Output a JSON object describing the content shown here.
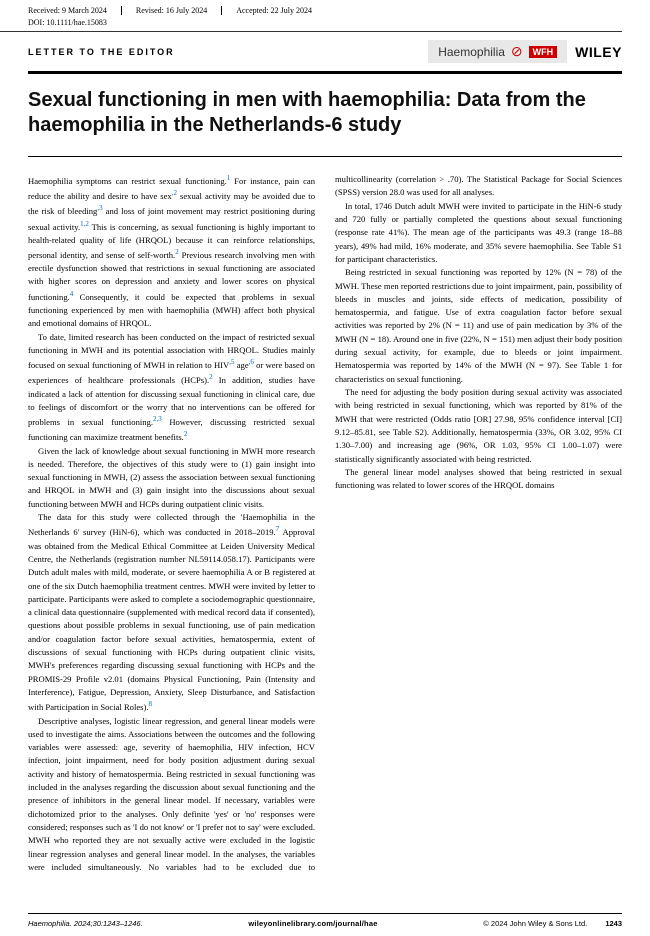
{
  "meta": {
    "received": "Received: 9 March 2024",
    "revised": "Revised: 16 July 2024",
    "accepted": "Accepted: 22 July 2024",
    "doi": "DOI: 10.1111/hae.15083"
  },
  "header": {
    "letter": "LETTER TO THE EDITOR",
    "haem": "Haemophilia",
    "wfh": "WFH",
    "wiley": "WILEY"
  },
  "title": "Sexual functioning in men with haemophilia: Data from the haemophilia in the Netherlands-6 study",
  "paragraphs": [
    "Haemophilia symptoms can restrict sexual functioning.¹ For instance, pain can reduce the ability and desire to have sex,² sexual activity may be avoided due to the risk of bleeding,³ and loss of joint movement may restrict positioning during sexual activity.¹,² This is concerning, as sexual functioning is highly important to health-related quality of life (HRQOL) because it can reinforce relationships, personal identity, and sense of self-worth.² Previous research involving men with erectile dysfunction showed that restrictions in sexual functioning are associated with higher scores on depression and anxiety and lower scores on physical functioning.⁴ Consequently, it could be expected that problems in sexual functioning experienced by men with haemophilia (MWH) affect both physical and emotional domains of HRQOL.",
    "To date, limited research has been conducted on the impact of restricted sexual functioning in MWH and its potential association with HRQOL. Studies mainly focused on sexual functioning of MWH in relation to HIV,⁵ age,⁶ or were based on experiences of healthcare professionals (HCPs).² In addition, studies have indicated a lack of attention for discussing sexual functioning in clinical care, due to feelings of discomfort or the worry that no interventions can be offered for problems in sexual functioning.²,³ However, discussing restricted sexual functioning can maximize treatment benefits.²",
    "Given the lack of knowledge about sexual functioning in MWH more research is needed. Therefore, the objectives of this study were to (1) gain insight into sexual functioning in MWH, (2) assess the association between sexual functioning and HRQOL in MWH and (3) gain insight into the discussions about sexual functioning between MWH and HCPs during outpatient clinic visits.",
    "The data for this study were collected through the 'Haemophilia in the Netherlands 6' survey (HiN-6), which was conducted in 2018–2019.⁷ Approval was obtained from the Medical Ethical Committee at Leiden University Medical Centre, the Netherlands (registration number NL59114.058.17). Participants were Dutch adult males with mild, moderate, or severe haemophilia A or B registered at one of the six Dutch haemophilia treatment centres. MWH were invited by letter to participate. Participants were asked to complete a sociodemographic questionnaire, a clinical data questionnaire (supplemented with medical record data if consented), questions about possible problems in sexual functioning, use of pain medication and/or coagulation factor before sexual activities, hematospermia, extent of discussions of sexual functioning with HCPs during outpatient clinic visits, MWH's preferences regarding discussing sexual functioning with HCPs and the PROMIS-29 Profile v2.01 (domains Physical Functioning, Pain (Intensity and Interference), Fatigue, Depression, Anxiety, Sleep Disturbance, and Satisfaction with Participation in Social Roles).⁸",
    "Descriptive analyses, logistic linear regression, and general linear models were used to investigate the aims. Associations between the outcomes and the following variables were assessed: age, severity of haemophilia, HIV infection, HCV infection, joint impairment, need for body position adjustment during sexual activity and history of hematospermia. Being restricted in sexual functioning was included in the analyses regarding the discussion about sexual functioning and the presence of inhibitors in the general linear model. If necessary, variables were dichotomized prior to the analyses. Only definite 'yes' or 'no' responses were considered; responses such as 'I do not know' or 'I prefer not to say' were excluded. MWH who reported they are not sexually active were excluded in the logistic linear regression analyses and general linear model. In the analyses, the variables were included simultaneously. No variables had to be excluded due to multicollinearity (correlation > .70). The Statistical Package for Social Sciences (SPSS) version 28.0 was used for all analyses.",
    "In total, 1746 Dutch adult MWH were invited to participate in the HiN-6 study and 720 fully or partially completed the questions about sexual functioning (response rate 41%). The mean age of the participants was 49.3 (range 18–88 years), 49% had mild, 16% moderate, and 35% severe haemophilia. See Table S1 for participant characteristics.",
    "Being restricted in sexual functioning was reported by 12% (N = 78) of the MWH. These men reported restrictions due to joint impairment, pain, possibility of bleeds in muscles and joints, side effects of medication, possibility of hematospermia, and fatigue. Use of extra coagulation factor before sexual activities was reported by 2% (N = 11) and use of pain medication by 3% of the MWH (N = 18). Around one in five (22%, N = 151) men adjust their body position during sexual activity, for example, due to bleeds or joint impairment. Hematospermia was reported by 14% of the MWH (N = 97). See Table 1 for characteristics on sexual functioning.",
    "The need for adjusting the body position during sexual activity was associated with being restricted in sexual functioning, which was reported by 81% of the MWH that were restricted (Odds ratio [OR] 27.98, 95% confidence interval [CI] 9.12–85.81, see Table S2). Additionally, hematospermia (33%, OR 3.02, 95% CI 1.30–7.00) and increasing age (96%, OR 1.03, 95% CI 1.00–1.07) were statistically significantly associated with being restricted.",
    "The general linear model analyses showed that being restricted in sexual functioning was related to lower scores of the HRQOL domains"
  ],
  "footer": {
    "cite": "Haemophilia. 2024;30:1243–1246.",
    "link": "wileyonlinelibrary.com/journal/hae",
    "copy": "© 2024 John Wiley & Sons Ltd.",
    "page": "1243"
  }
}
